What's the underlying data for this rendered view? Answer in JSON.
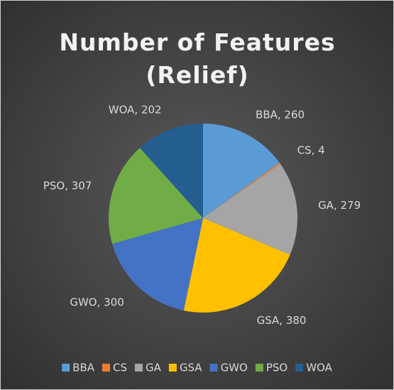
{
  "chart_data": {
    "type": "pie",
    "title": "Number of Features (Relief)",
    "categories": [
      "BBA",
      "CS",
      "GA",
      "GSA",
      "GWO",
      "PSO",
      "WOA"
    ],
    "values": [
      260,
      4,
      279,
      380,
      300,
      307,
      202
    ],
    "value_labels": [
      "BBA, 260",
      "CS, 4",
      "GA, 279",
      "GSA, 380",
      "GWO, 300",
      "PSO, 307",
      "WOA, 202"
    ],
    "colors": [
      "#5b9bd5",
      "#ed7d31",
      "#a5a5a5",
      "#ffc000",
      "#4472c4",
      "#70ad47",
      "#255e91"
    ],
    "legend": "bottom"
  }
}
